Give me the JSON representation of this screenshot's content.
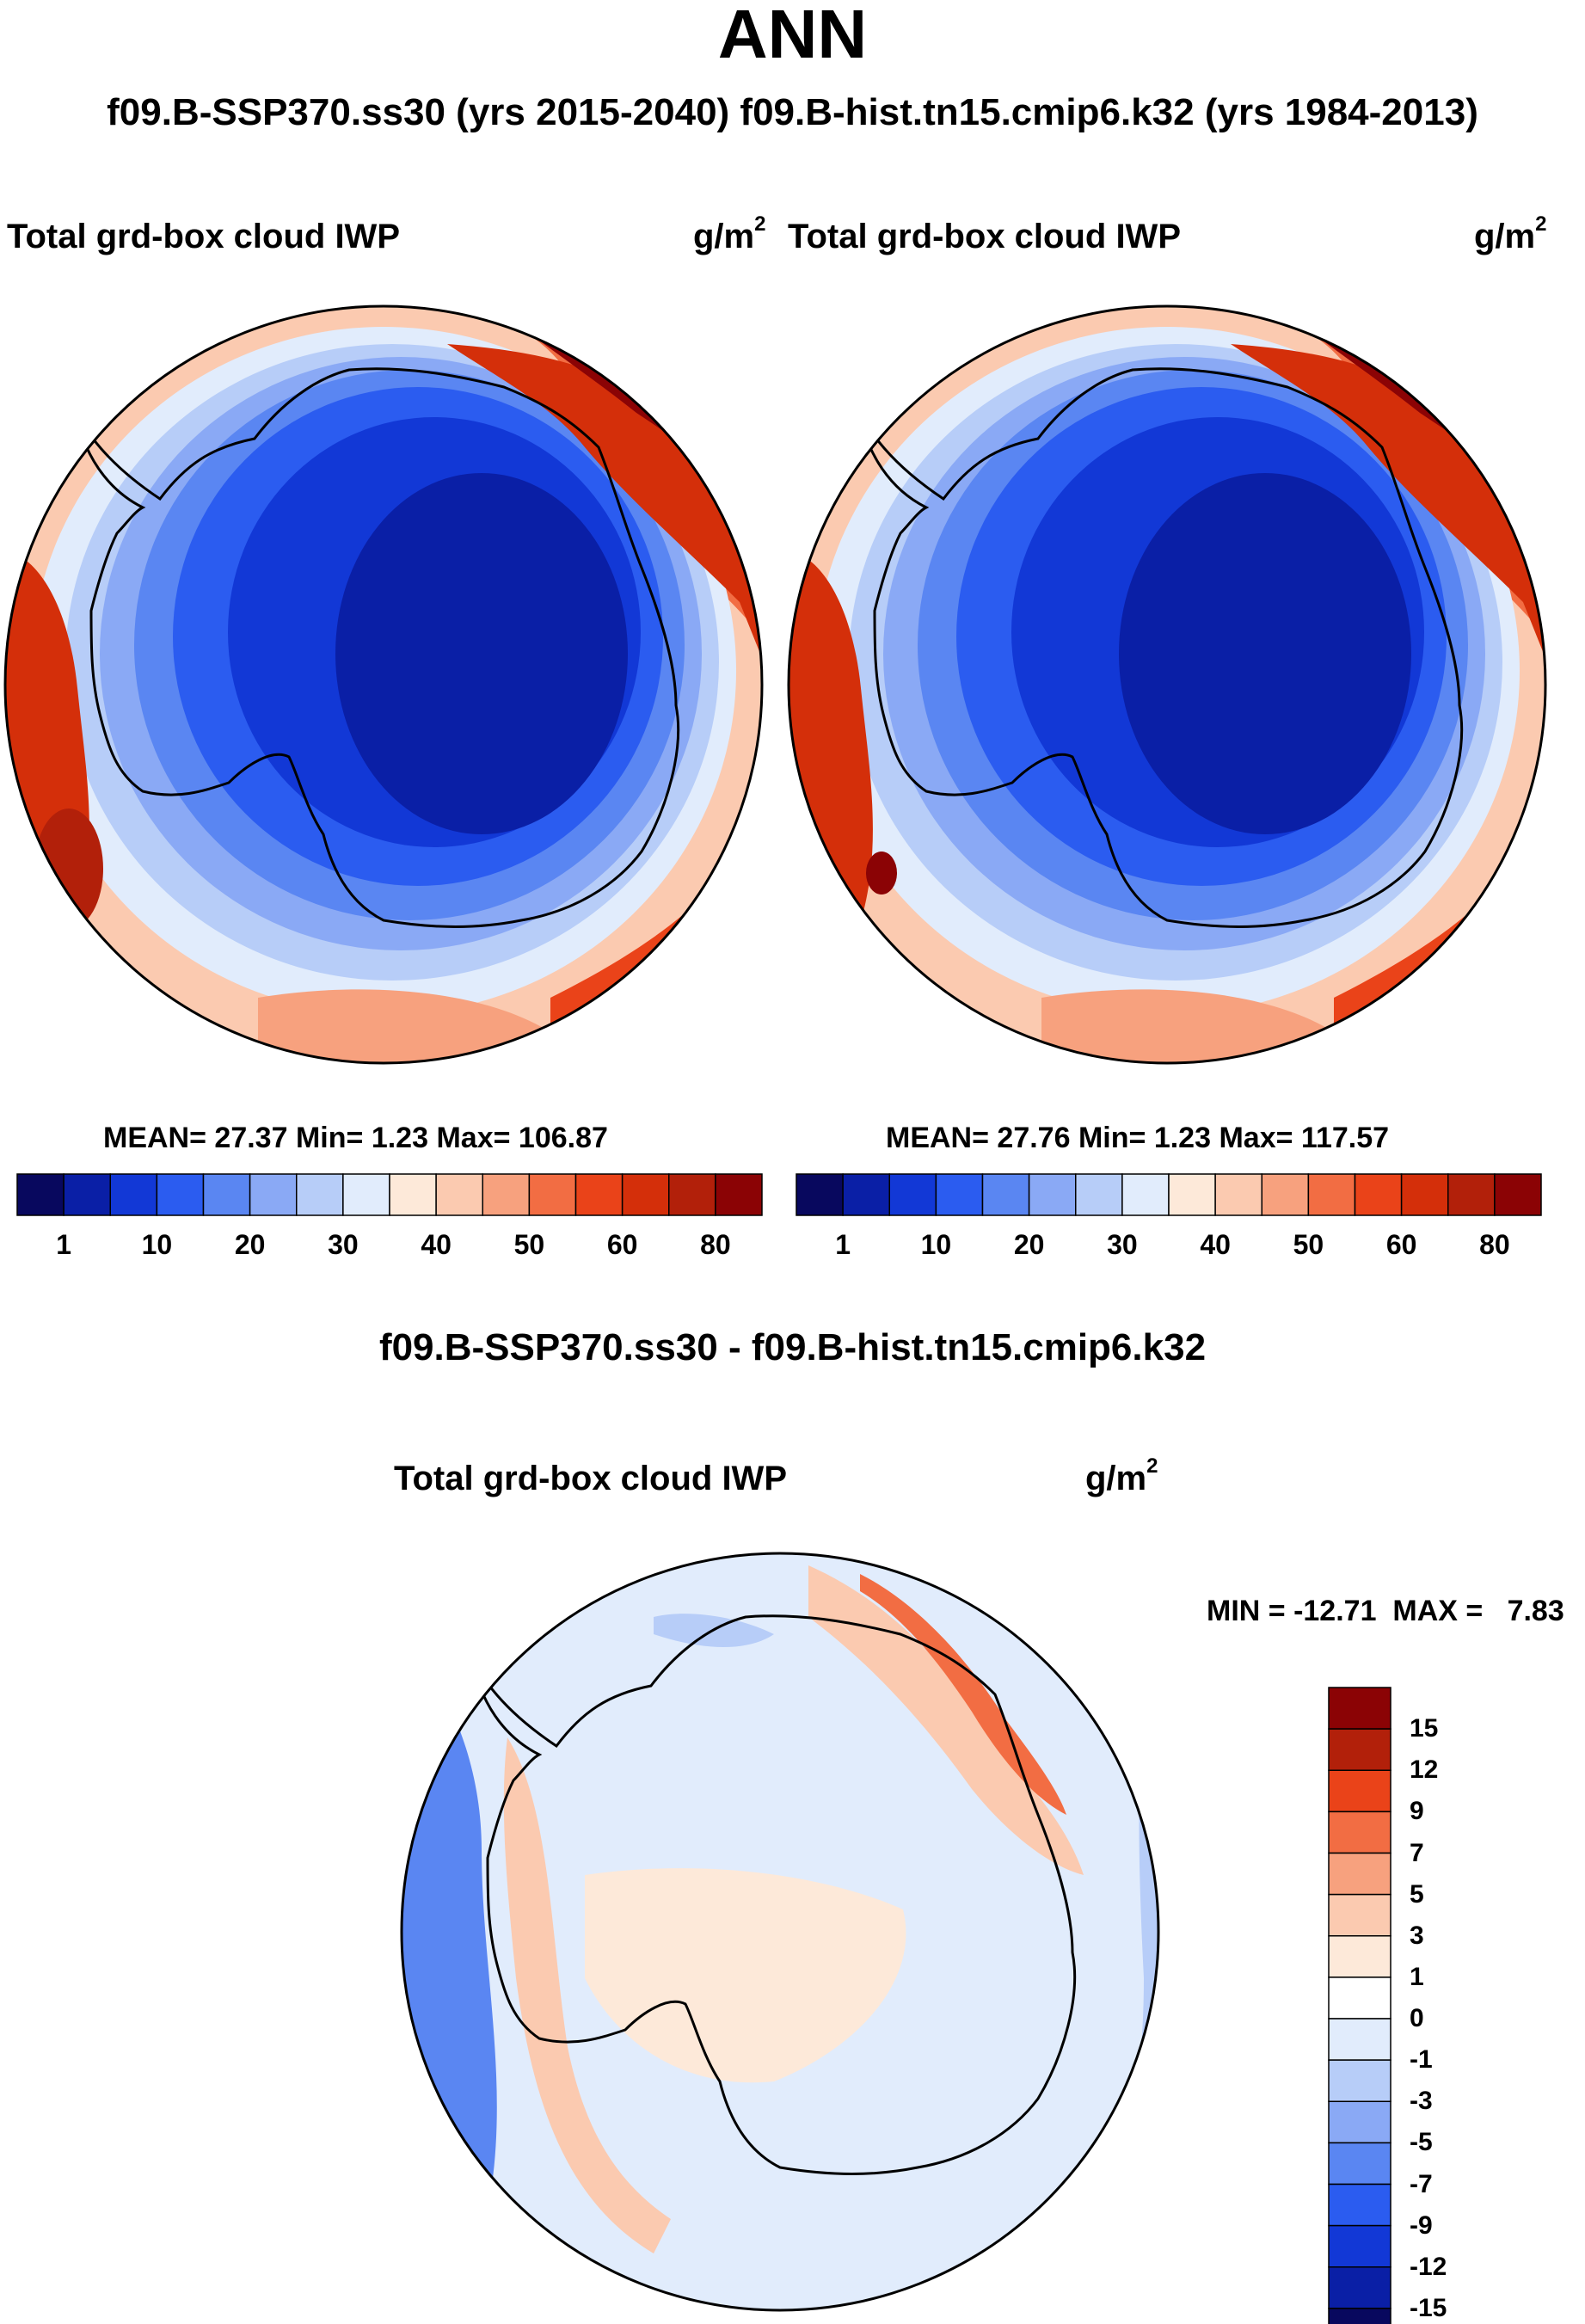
{
  "main_title": "ANN",
  "subtitle": "f09.B-SSP370.ss30 (yrs 2015-2040)  f09.B-hist.tn15.cmip6.k32 (yrs 1984-2013)",
  "left_panel": {
    "title": "Total grd-box cloud IWP",
    "units_base": "g/m",
    "units_exp": "2",
    "mean_label": "MEAN=",
    "mean": "27.37",
    "min_label": "Min=",
    "min": "1.23",
    "max_label": "Max=",
    "max": "106.87"
  },
  "right_panel": {
    "title": "Total grd-box cloud IWP",
    "units_base": "g/m",
    "units_exp": "2",
    "mean_label": "MEAN=",
    "mean": "27.76",
    "min_label": "Min=",
    "min": "1.23",
    "max_label": "Max=",
    "max": "117.57"
  },
  "colorbar_top": {
    "tick_labels": [
      "1",
      "10",
      "20",
      "30",
      "40",
      "50",
      "60",
      "80"
    ],
    "colors": [
      "#08085e",
      "#0a1fa6",
      "#1238d6",
      "#2b5cf0",
      "#5a86f2",
      "#8aa9f5",
      "#b7cdf8",
      "#e1ecfc",
      "#fde9d9",
      "#fbcab0",
      "#f7a17e",
      "#f26d43",
      "#ea4319",
      "#d42f0a",
      "#b2200a",
      "#8b0305"
    ]
  },
  "diff_title": "f09.B-SSP370.ss30 - f09.B-hist.tn15.cmip6.k32",
  "diff_panel": {
    "title": "Total grd-box cloud IWP",
    "units_base": "g/m",
    "units_exp": "2",
    "minmax": "MIN = -12.71  MAX =   7.83"
  },
  "colorbar_diff": {
    "tick_labels": [
      "15",
      "12",
      "9",
      "7",
      "5",
      "3",
      "1",
      "0",
      "-1",
      "-3",
      "-5",
      "-7",
      "-9",
      "-12",
      "-15"
    ],
    "colors": [
      "#8b0305",
      "#b2200a",
      "#ea4319",
      "#f26d43",
      "#f7a17e",
      "#fbcab0",
      "#fde9d9",
      "#ffffff",
      "#e1ecfc",
      "#b7cdf8",
      "#8aa9f5",
      "#5a86f2",
      "#2b5cf0",
      "#1238d6",
      "#0a1fa6",
      "#08085e"
    ]
  }
}
